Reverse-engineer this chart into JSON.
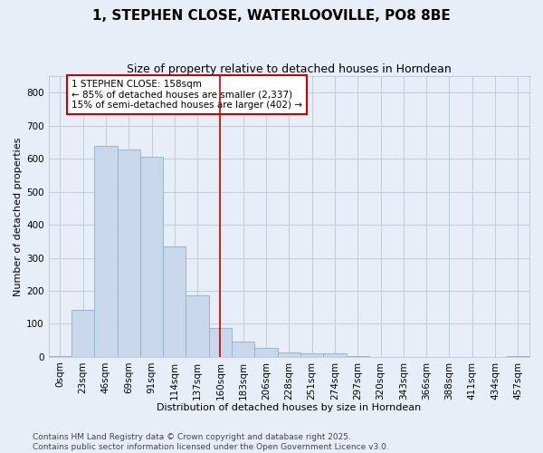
{
  "title": "1, STEPHEN CLOSE, WATERLOOVILLE, PO8 8BE",
  "subtitle": "Size of property relative to detached houses in Horndean",
  "xlabel": "Distribution of detached houses by size in Horndean",
  "ylabel": "Number of detached properties",
  "categories": [
    "0sqm",
    "23sqm",
    "46sqm",
    "69sqm",
    "91sqm",
    "114sqm",
    "137sqm",
    "160sqm",
    "183sqm",
    "206sqm",
    "228sqm",
    "251sqm",
    "274sqm",
    "297sqm",
    "320sqm",
    "343sqm",
    "366sqm",
    "388sqm",
    "411sqm",
    "434sqm",
    "457sqm"
  ],
  "values": [
    2,
    143,
    638,
    629,
    606,
    335,
    185,
    88,
    47,
    28,
    14,
    10,
    10,
    2,
    0,
    0,
    0,
    0,
    0,
    0,
    2
  ],
  "bar_color": "#c8d8ea",
  "bar_edge_color": "#8ab0cc",
  "property_line_x": 7.0,
  "annotation_text": "1 STEPHEN CLOSE: 158sqm\n← 85% of detached houses are smaller (2,337)\n15% of semi-detached houses are larger (402) →",
  "annotation_box_color": "#ffffff",
  "annotation_box_edge_color": "#cc0000",
  "property_line_color": "#cc0000",
  "grid_color": "#c0ccd8",
  "background_color": "#e8eef8",
  "footer_text": "Contains HM Land Registry data © Crown copyright and database right 2025.\nContains public sector information licensed under the Open Government Licence v3.0.",
  "ylim": [
    0,
    850
  ],
  "yticks": [
    0,
    100,
    200,
    300,
    400,
    500,
    600,
    700,
    800
  ],
  "title_fontsize": 11,
  "subtitle_fontsize": 9,
  "xlabel_fontsize": 8,
  "ylabel_fontsize": 8,
  "tick_fontsize": 7.5,
  "annotation_fontsize": 7.5,
  "footer_fontsize": 6.5
}
